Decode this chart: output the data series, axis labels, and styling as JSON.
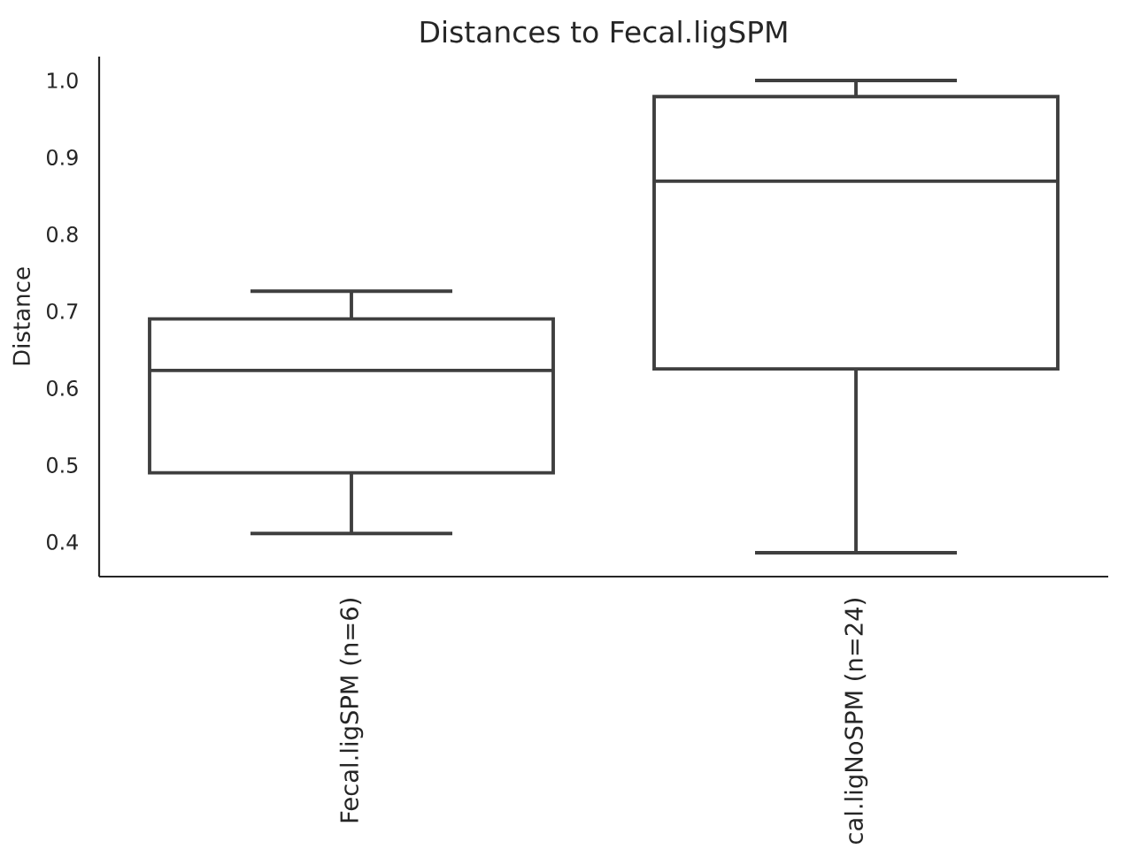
{
  "chart_data": {
    "type": "box",
    "title": "Distances to Fecal.ligSPM",
    "ylabel": "Distance",
    "categories": [
      "Fecal.ligSPM (n=6)",
      "cal.ligNoSPM (n=24)"
    ],
    "boxes": [
      {
        "low": 0.411,
        "q1": 0.49,
        "median": 0.623,
        "q3": 0.69,
        "high": 0.726
      },
      {
        "low": 0.386,
        "q1": 0.625,
        "median": 0.869,
        "q3": 0.979,
        "high": 1.0
      }
    ],
    "color": "#3f3f3f",
    "ylim": [
      0.355,
      1.031
    ],
    "yticks": [
      0.4,
      0.5,
      0.6,
      0.7,
      0.8,
      0.9,
      {
        "value": 1.0,
        "label": "1.0"
      }
    ]
  }
}
